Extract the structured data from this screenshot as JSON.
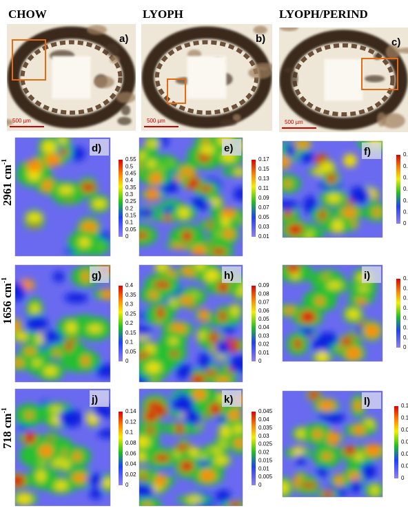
{
  "columns": [
    "CHOW",
    "LYOPH",
    "LYOPH/PERIND"
  ],
  "rows": [
    {
      "label": "2961 cm",
      "sup": "-1"
    },
    {
      "label": "1656 cm",
      "sup": "-1"
    },
    {
      "label": "718 cm",
      "sup": "-1"
    }
  ],
  "micrographs": [
    {
      "label": "a)",
      "scale_bar": "500 µm"
    },
    {
      "label": "b)",
      "scale_bar": "500 µm"
    },
    {
      "label": "c)",
      "scale_bar": "500 µm"
    }
  ],
  "maps": [
    {
      "label": "d)",
      "colorbar": [
        "0.55",
        "0.5",
        "0.45",
        "0.4",
        "0.35",
        "0.3",
        "0.25",
        "0.2",
        "0.15",
        "0.1",
        "0.05",
        "0"
      ]
    },
    {
      "label": "e)",
      "colorbar": [
        "0.17",
        "0.15",
        "0.13",
        "0.11",
        "0.09",
        "0.07",
        "0.05",
        "0.03",
        "0.01"
      ]
    },
    {
      "label": "f)",
      "colorbar": [
        "0.",
        "0.",
        "0.",
        "0.",
        "0.",
        "0.",
        "0"
      ]
    },
    {
      "label": "g)",
      "colorbar": [
        "0.4",
        "0.35",
        "0.3",
        "0.25",
        "0.2",
        "0.15",
        "0.1",
        "0.05",
        "0"
      ]
    },
    {
      "label": "h)",
      "colorbar": [
        "0.09",
        "0.08",
        "0.07",
        "0.06",
        "0.05",
        "0.04",
        "0.03",
        "0.02",
        "0.01",
        "0"
      ]
    },
    {
      "label": "i)",
      "colorbar": [
        "0.",
        "0.",
        "0.",
        "0.",
        "0.",
        "0.",
        "0.",
        "0"
      ]
    },
    {
      "label": "j)",
      "colorbar": [
        "0.14",
        "0.12",
        "0.1",
        "0.08",
        "0.06",
        "0.04",
        "0.02",
        "0"
      ]
    },
    {
      "label": "k)",
      "colorbar": [
        "0.045",
        "0.04",
        "0.035",
        "0.03",
        "0.025",
        "0.02",
        "0.015",
        "0.01",
        "0.005",
        "0"
      ]
    },
    {
      "label": "l)",
      "colorbar": [
        "0.1",
        "0.1",
        "0.0",
        "0.0",
        "0.0",
        "0.0",
        "0"
      ]
    }
  ]
}
